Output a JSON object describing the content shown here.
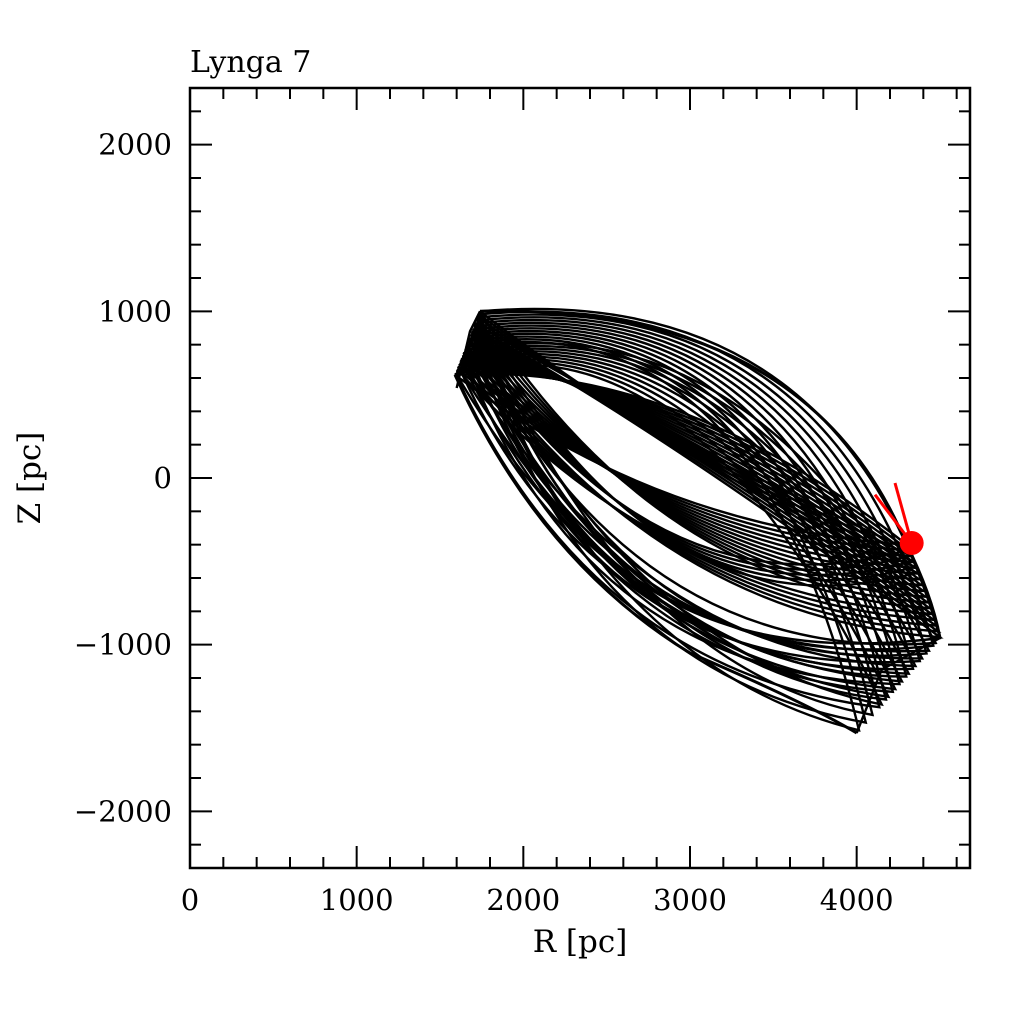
{
  "chart_data": {
    "type": "line",
    "title": "Lynga 7",
    "xlabel": "R [pc]",
    "ylabel": "Z [pc]",
    "xlim": [
      0,
      4680
    ],
    "ylim": [
      -2340,
      2340
    ],
    "x_ticks": [
      0,
      1000,
      2000,
      3000,
      4000
    ],
    "x_tick_labels": [
      "0",
      "1000",
      "2000",
      "3000",
      "4000"
    ],
    "y_ticks": [
      -2000,
      -1000,
      0,
      1000,
      2000
    ],
    "y_tick_labels": [
      "−2000",
      "−1000",
      "0",
      "1000",
      "2000"
    ],
    "x_minor_step": 200,
    "y_minor_step": 200,
    "grid": false,
    "orbit": {
      "color": "#000000",
      "envelope_vertices": [
        [
          1740,
          1000
        ],
        [
          4300,
          -400
        ],
        [
          4500,
          -960
        ],
        [
          4000,
          -1530
        ],
        [
          1590,
          620
        ]
      ],
      "loop_count": 22
    },
    "current_position": {
      "x": 4330,
      "y": -390,
      "color": "#ff0000",
      "velocity_end": [
        4110,
        -100
      ],
      "velocity_end_alt": [
        4230,
        -30
      ]
    }
  }
}
